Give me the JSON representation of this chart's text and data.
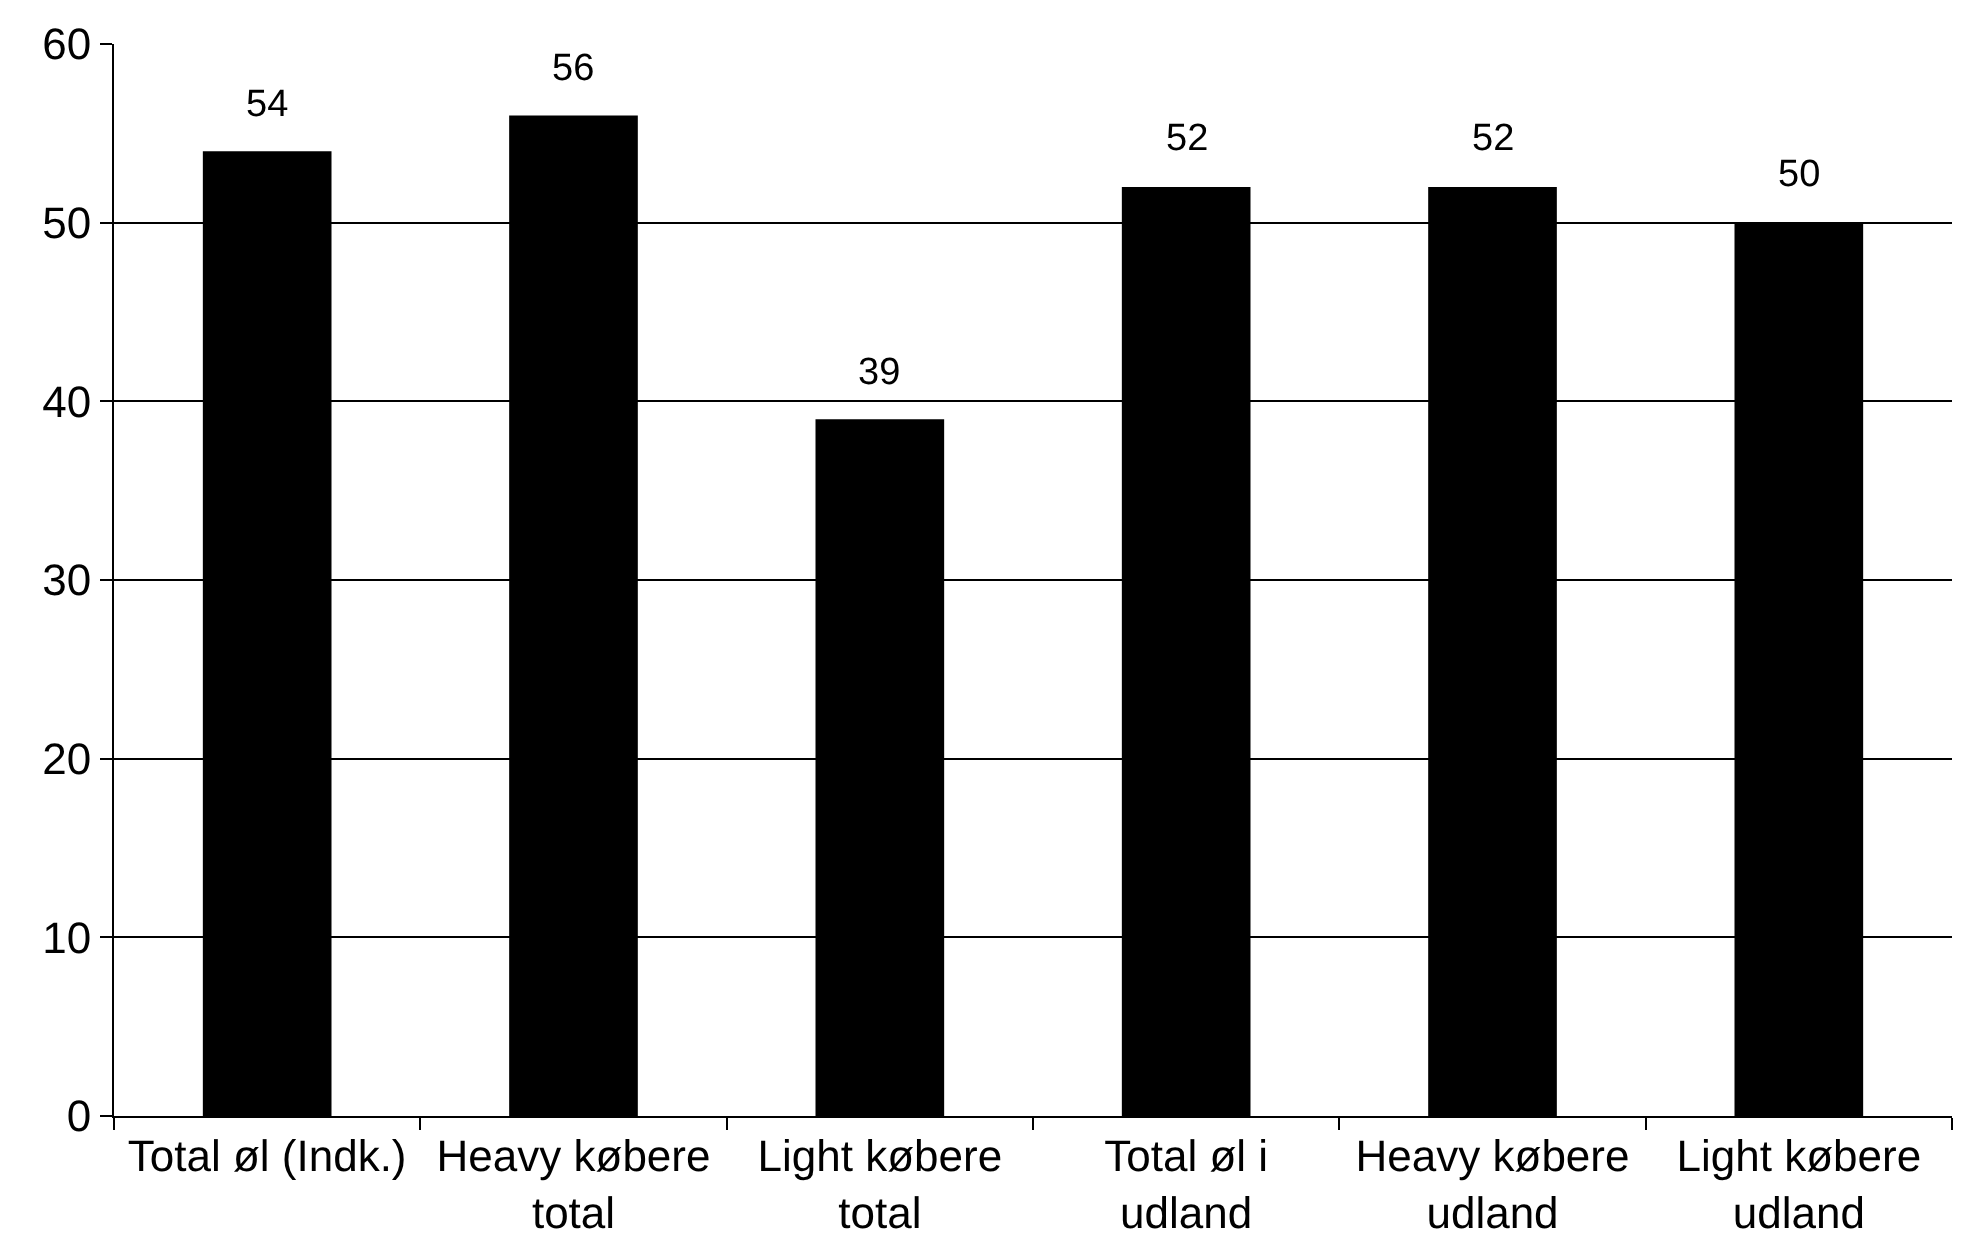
{
  "chart_data": {
    "type": "bar",
    "categories": [
      "Total øl (Indk.)",
      "Heavy købere\ntotal",
      "Light købere\ntotal",
      "Total øl i\nudland",
      "Heavy købere\nudland",
      "Light købere\nudland"
    ],
    "values": [
      54,
      56,
      39,
      52,
      52,
      50
    ],
    "color": "#000000",
    "ylim": [
      0,
      60
    ],
    "yticks": [
      0,
      10,
      20,
      30,
      40,
      50,
      60
    ],
    "grid": "y",
    "data_labels": true
  }
}
